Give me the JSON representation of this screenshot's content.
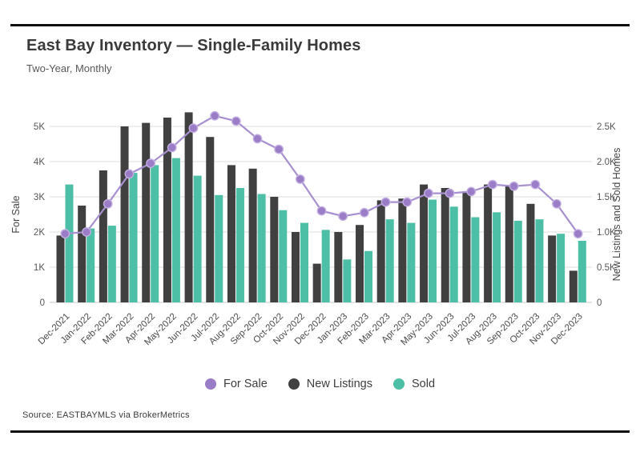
{
  "page": {
    "title": "East Bay Inventory — Single-Family Homes",
    "subtitle": "Two-Year, Monthly",
    "source": "Source:  EASTBAYMLS via BrokerMetrics"
  },
  "chart_data": {
    "type": "combo",
    "title": "East Bay Inventory — Single-Family Homes",
    "subtitle": "Two-Year, Monthly",
    "grid": true,
    "legend_position": "bottom",
    "categories": [
      "Dec-2021",
      "Jan-2022",
      "Feb-2022",
      "Mar-2022",
      "Apr-2022",
      "May-2022",
      "Jun-2022",
      "Jul-2022",
      "Aug-2022",
      "Sep-2022",
      "Oct-2022",
      "Nov-2022",
      "Dec-2022",
      "Jan-2023",
      "Feb-2023",
      "Mar-2023",
      "Apr-2023",
      "May-2023",
      "Jun-2023",
      "Jul-2023",
      "Aug-2023",
      "Sep-2023",
      "Oct-2023",
      "Nov-2023",
      "Dec-2023"
    ],
    "series": [
      {
        "name": "For Sale",
        "type": "line",
        "axis": "left",
        "color": "#9B7CC6",
        "line_color": "#A78FD0",
        "values": [
          1950,
          2000,
          2800,
          3650,
          3950,
          4400,
          4950,
          5300,
          5150,
          4650,
          4350,
          3500,
          2600,
          2450,
          2550,
          2850,
          2850,
          3100,
          3100,
          3150,
          3350,
          3300,
          3350,
          2800,
          1950
        ]
      },
      {
        "name": "New Listings",
        "type": "bar",
        "axis": "right",
        "color": "#404040",
        "values": [
          950,
          1375,
          1875,
          2500,
          2550,
          2625,
          2700,
          2350,
          1950,
          1900,
          1500,
          1000,
          550,
          1000,
          1100,
          1450,
          1475,
          1675,
          1625,
          1575,
          1675,
          1650,
          1400,
          950,
          450
        ]
      },
      {
        "name": "Sold",
        "type": "bar",
        "axis": "right",
        "color": "#4CBFA6",
        "values": [
          1675,
          1050,
          1090,
          1840,
          1950,
          2050,
          1800,
          1525,
          1625,
          1540,
          1310,
          1130,
          1030,
          610,
          730,
          1180,
          1130,
          1460,
          1360,
          1210,
          1280,
          1160,
          1180,
          975,
          875
        ]
      }
    ],
    "left_axis": {
      "label": "For Sale",
      "min": 0,
      "max": 5000,
      "tick_labels": [
        "0",
        "1K",
        "2K",
        "3K",
        "4K",
        "5K"
      ]
    },
    "right_axis": {
      "label": "New Listings and Sold Homes",
      "min": 0,
      "max": 2500,
      "tick_labels": [
        "0",
        "0.5K",
        "1.0K",
        "1.5K",
        "2.0K",
        "2.5K"
      ]
    },
    "legend": [
      {
        "label": "For Sale",
        "color": "#9B7CC6"
      },
      {
        "label": "New Listings",
        "color": "#404040"
      },
      {
        "label": "Sold",
        "color": "#4CBFA6"
      }
    ]
  }
}
